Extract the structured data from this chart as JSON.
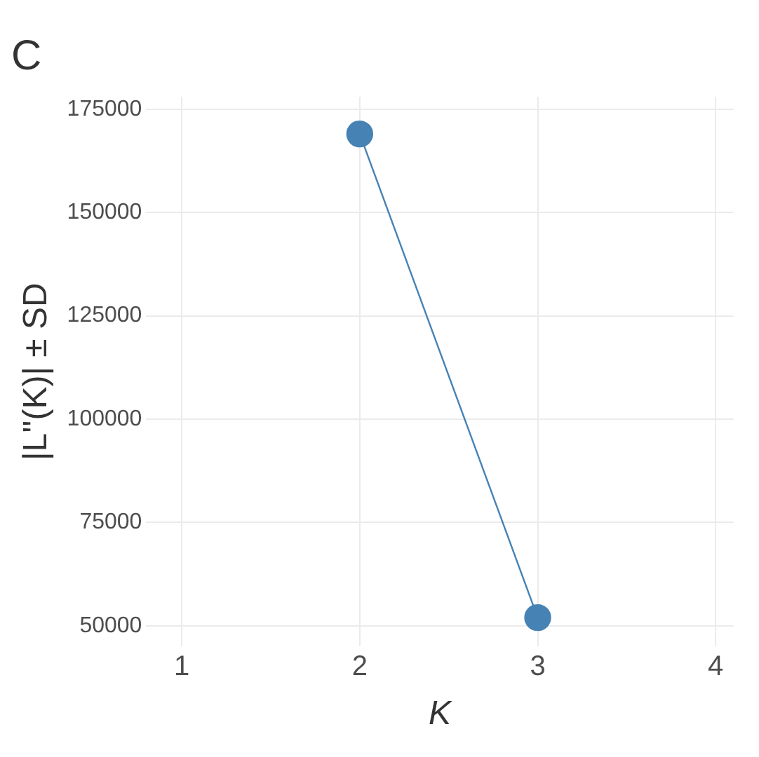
{
  "chart_data": {
    "type": "line",
    "title": "C",
    "xlabel": "K",
    "ylabel": "|L''(K)| ± SD",
    "x": [
      2,
      3
    ],
    "series": [
      {
        "color": "#4682b4",
        "values": [
          169000,
          52000
        ]
      }
    ],
    "xlim": [
      0.8,
      4.1
    ],
    "xticks": [
      1,
      2,
      3,
      4
    ],
    "ylim": [
      45000,
      178000
    ],
    "yticks": [
      50000,
      75000,
      100000,
      125000,
      150000,
      175000
    ],
    "grid": true,
    "legend": false,
    "marker": "circle",
    "line_style": "solid"
  }
}
